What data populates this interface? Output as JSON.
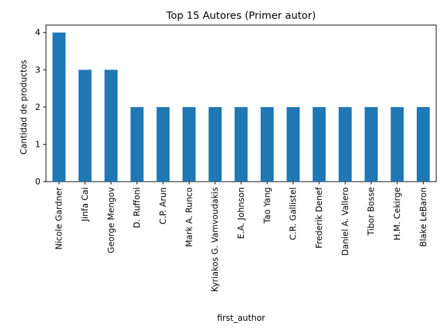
{
  "chart_data": {
    "type": "bar",
    "title": "Top 15 Autores (Primer autor)",
    "xlabel": "first_author",
    "ylabel": "Cantidad de productos",
    "categories": [
      "Nicole Gardner",
      "Jinfa Cai",
      "George Mengov",
      "D. Ruffoni",
      "C.P. Arun",
      "Mark A. Runco",
      "Kyriakos G. Vamvoudakis",
      "E.A. Johnson",
      "Tao Yang",
      "C.R. Gallistel",
      "Frederik Denef",
      "Daniel A. Vallero",
      "Tibor Bosse",
      "H.M. Cekirge",
      "Blake LeBaron"
    ],
    "values": [
      4,
      3,
      3,
      2,
      2,
      2,
      2,
      2,
      2,
      2,
      2,
      2,
      2,
      2,
      2
    ],
    "ylim": [
      0,
      4.2
    ],
    "yticks": [
      "0",
      "1",
      "2",
      "3",
      "4"
    ],
    "grid": false,
    "legend": "none",
    "colors": {
      "bar": "#1f77b4",
      "axis": "#000000",
      "background": "#ffffff"
    }
  }
}
